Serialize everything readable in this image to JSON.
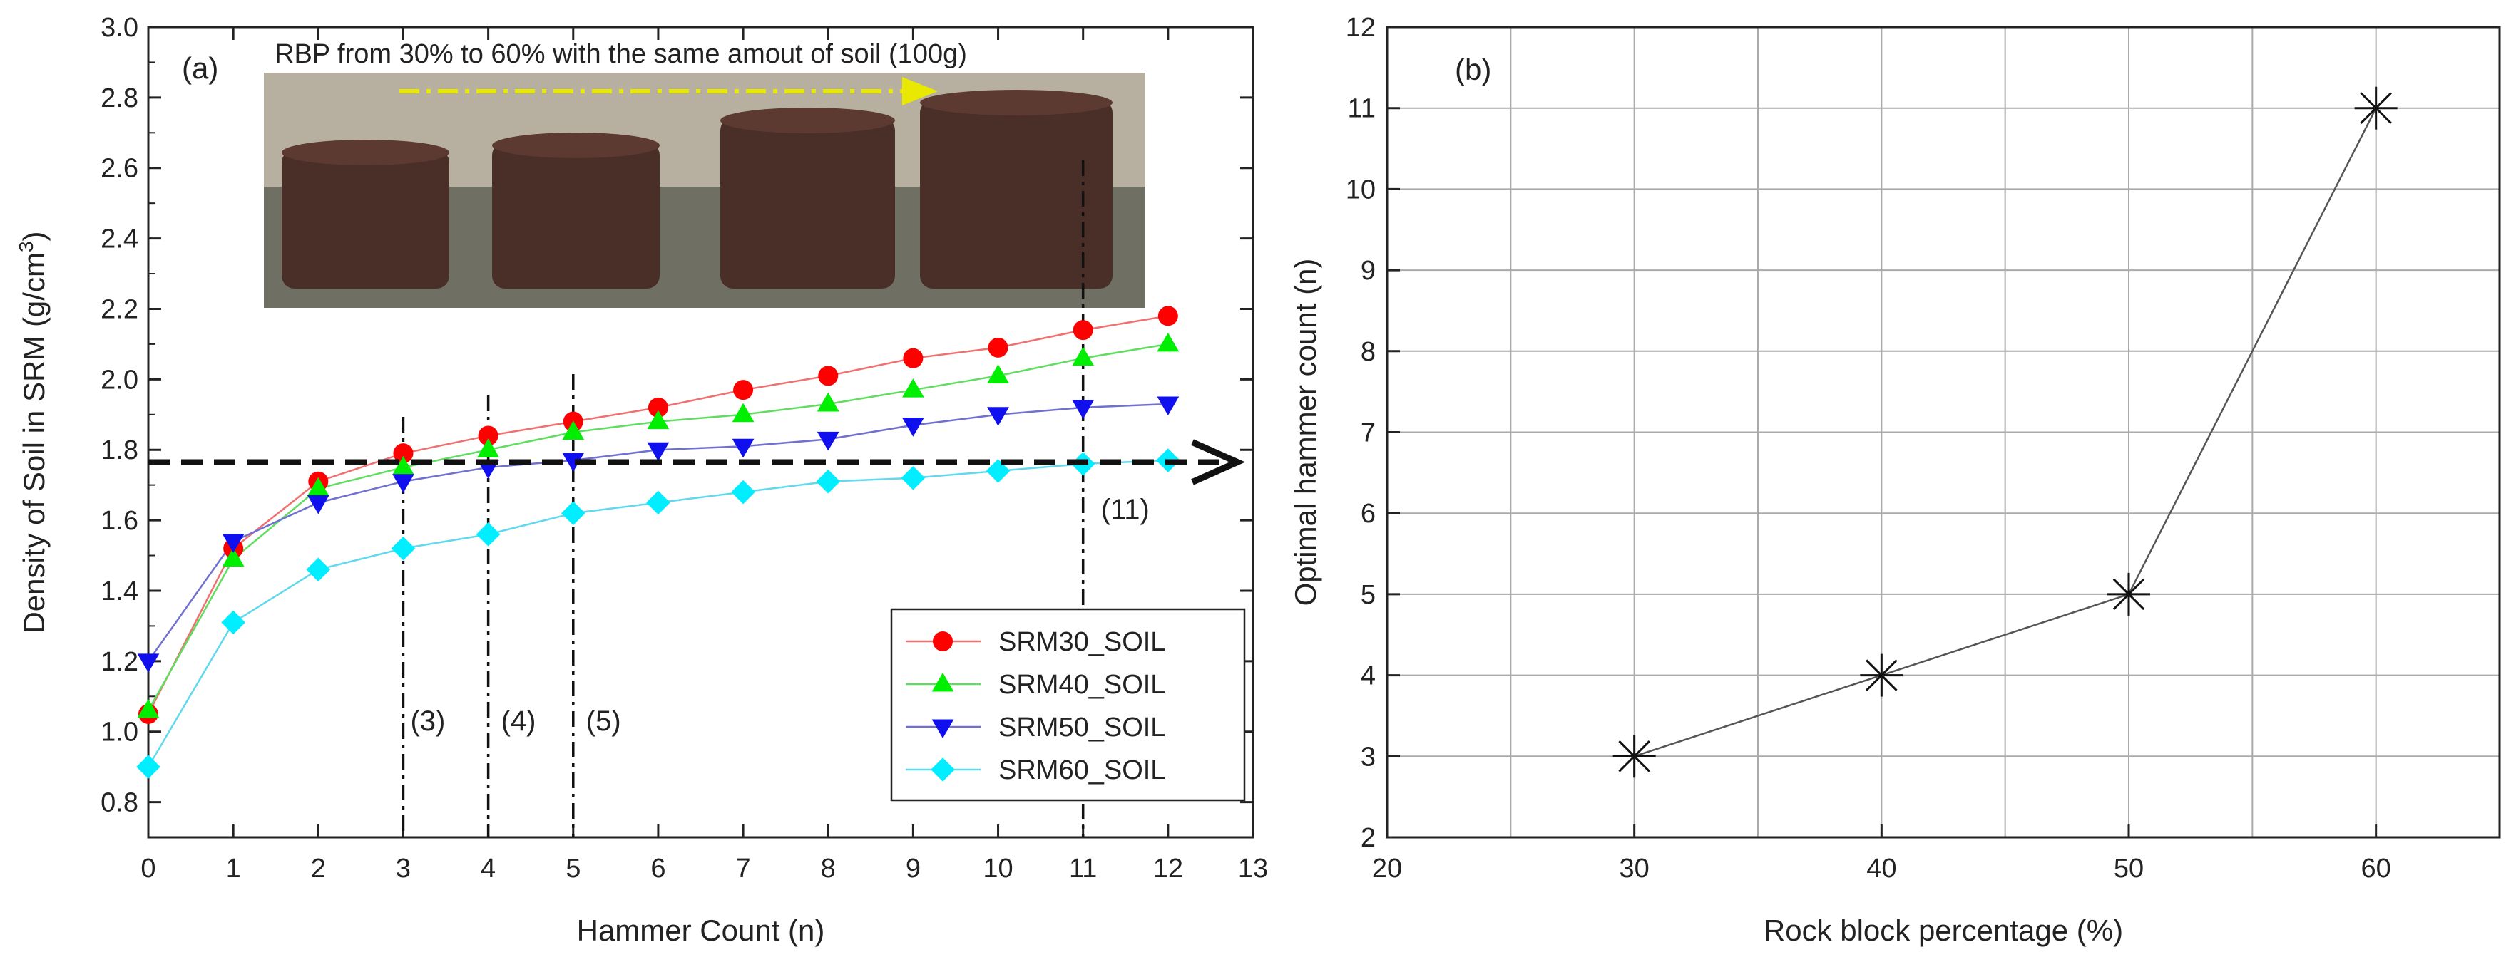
{
  "chart_data": [
    {
      "type": "line",
      "panel_label": "(a)",
      "title": "",
      "xlabel": "Hammer Count (n)",
      "ylabel_main": "Density of Soil in SRM (g/cm",
      "ylabel_sup": "3",
      "ylabel_end": ")",
      "xlim": [
        0,
        13
      ],
      "ylim": [
        0.7,
        3.0
      ],
      "xticks": [
        "0",
        "1",
        "2",
        "3",
        "4",
        "5",
        "6",
        "7",
        "8",
        "9",
        "10",
        "11",
        "12",
        "13"
      ],
      "yticks": [
        "0.8",
        "1.0",
        "1.2",
        "1.4",
        "1.6",
        "1.8",
        "2.0",
        "2.2",
        "2.4",
        "2.6",
        "2.8",
        "3.0"
      ],
      "x": [
        0,
        1,
        2,
        3,
        4,
        5,
        6,
        7,
        8,
        9,
        10,
        11,
        12
      ],
      "series": [
        {
          "name": "SRM30_SOIL",
          "color": "#ff0000",
          "line": "#f07070",
          "marker": "circle",
          "values": [
            1.05,
            1.52,
            1.71,
            1.79,
            1.84,
            1.88,
            1.92,
            1.97,
            2.01,
            2.06,
            2.09,
            2.14,
            2.18
          ]
        },
        {
          "name": "SRM40_SOIL",
          "color": "#00ee00",
          "line": "#60dd60",
          "marker": "triangle-up",
          "values": [
            1.06,
            1.49,
            1.69,
            1.75,
            1.8,
            1.85,
            1.88,
            1.9,
            1.93,
            1.97,
            2.01,
            2.06,
            2.1
          ]
        },
        {
          "name": "SRM50_SOIL",
          "color": "#1010ee",
          "line": "#7070d0",
          "marker": "triangle-down",
          "values": [
            1.2,
            1.54,
            1.65,
            1.71,
            1.75,
            1.77,
            1.8,
            1.81,
            1.83,
            1.87,
            1.9,
            1.92,
            1.93
          ]
        },
        {
          "name": "SRM60_SOIL",
          "color": "#00eeff",
          "line": "#60d8ee",
          "marker": "diamond",
          "values": [
            0.9,
            1.31,
            1.46,
            1.52,
            1.56,
            1.62,
            1.65,
            1.68,
            1.71,
            1.72,
            1.74,
            1.76,
            1.77
          ]
        }
      ],
      "reference_line": {
        "y": 1.765,
        "x_end": 13.0,
        "label": "(11)"
      },
      "vertical_markers": [
        {
          "x": 3,
          "label": "(3)"
        },
        {
          "x": 4,
          "label": "(4)"
        },
        {
          "x": 5,
          "label": "(5)"
        },
        {
          "x": 11,
          "label": "(11)"
        }
      ],
      "photo_caption": "RBP from 30% to 60% with the same amout of soil (100g)",
      "legend_position": "lower-right"
    },
    {
      "type": "line",
      "panel_label": "(b)",
      "title": "",
      "xlabel": "Rock block percentage (%)",
      "ylabel": "Optimal hammer count (n)",
      "xlim": [
        20,
        65
      ],
      "ylim": [
        2,
        12
      ],
      "xticks": [
        "20",
        "30",
        "40",
        "50",
        "60"
      ],
      "yticks": [
        "2",
        "3",
        "4",
        "5",
        "6",
        "7",
        "8",
        "9",
        "10",
        "11",
        "12"
      ],
      "grid": true,
      "x": [
        30,
        40,
        50,
        60
      ],
      "series": [
        {
          "name": "Optimal hammer count",
          "color": "#111111",
          "marker": "star",
          "values": [
            3,
            4,
            5,
            11
          ]
        }
      ]
    }
  ],
  "colors": {
    "axis": "#222222",
    "grid": "#aaaaaa",
    "reference_line": "#111111",
    "photo_bg": "#8a8a7c",
    "caption_arrow": "#e8e800"
  }
}
